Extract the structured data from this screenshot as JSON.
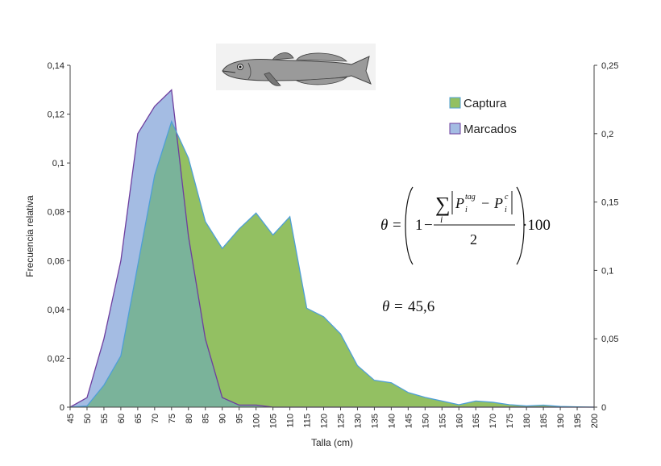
{
  "chart_data": {
    "type": "area",
    "xlabel": "Talla (cm)",
    "ylabel": "Frecuencia relativa",
    "x": [
      45,
      50,
      55,
      60,
      65,
      70,
      75,
      80,
      85,
      90,
      95,
      100,
      105,
      110,
      115,
      120,
      125,
      130,
      135,
      140,
      145,
      150,
      155,
      160,
      165,
      170,
      175,
      180,
      185,
      190,
      195,
      200
    ],
    "x_tick_labels": [
      "45",
      "50",
      "55",
      "60",
      "65",
      "70",
      "75",
      "80",
      "85",
      "90",
      "95",
      "100",
      "105",
      "110",
      "115",
      "120",
      "125",
      "130",
      "135",
      "140",
      "145",
      "150",
      "155",
      "160",
      "165",
      "170",
      "175",
      "180",
      "185",
      "190",
      "195",
      "200"
    ],
    "ylim_left": [
      0,
      0.14
    ],
    "y_tick_labels_left": [
      "0",
      "0,02",
      "0,04",
      "0,06",
      "0,08",
      "0,1",
      "0,12",
      "0,14"
    ],
    "ylim_right": [
      0,
      0.25
    ],
    "y_tick_labels_right": [
      "0",
      "0,05",
      "0,1",
      "0,15",
      "0,2",
      "0,25"
    ],
    "series": [
      {
        "name": "Captura",
        "axis": "left",
        "fill": "#93C062",
        "stroke": "#4F9FD6",
        "values": [
          0,
          0.0005,
          0.009,
          0.021,
          0.058,
          0.095,
          0.117,
          0.102,
          0.076,
          0.065,
          0.073,
          0.0795,
          0.0705,
          0.078,
          0.0405,
          0.037,
          0.03,
          0.017,
          0.011,
          0.01,
          0.006,
          0.004,
          0.0025,
          0.001,
          0.0025,
          0.002,
          0.001,
          0.0005,
          0.0008,
          0.0003,
          0.0001,
          0
        ]
      },
      {
        "name": "Marcados",
        "axis": "right",
        "fill": "#A4BCE3",
        "stroke": "#6E3E9E",
        "values": [
          0,
          0.007,
          0.05,
          0.107,
          0.2,
          0.22,
          0.232,
          0.125,
          0.05,
          0.007,
          0.0015,
          0.0015,
          0,
          0,
          0,
          0,
          0,
          0,
          0,
          0,
          0,
          0,
          0,
          0,
          0,
          0,
          0,
          0,
          0,
          0,
          0,
          0
        ]
      }
    ],
    "legend_position": "right",
    "grid": false,
    "annotations": {
      "formula_fraction_denominator": "2",
      "formula_scale": "·100",
      "theta_symbol": "θ",
      "theta_value": "45,6"
    }
  },
  "colors": {
    "overlap_fill": "#7AB39A",
    "axis": "#444444"
  },
  "image": {
    "icon": "fish-illustration-icon"
  }
}
